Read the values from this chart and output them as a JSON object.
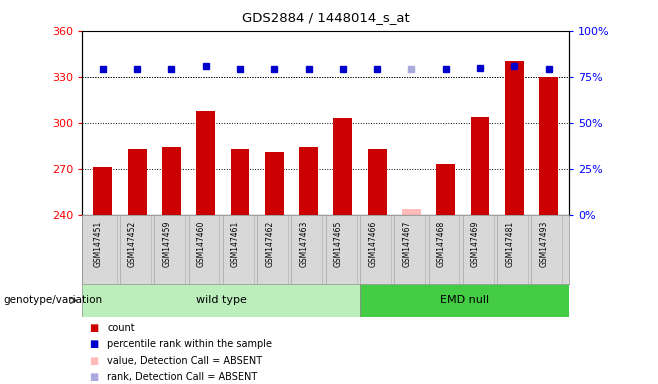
{
  "title": "GDS2884 / 1448014_s_at",
  "samples": [
    "GSM147451",
    "GSM147452",
    "GSM147459",
    "GSM147460",
    "GSM147461",
    "GSM147462",
    "GSM147463",
    "GSM147465",
    "GSM147466",
    "GSM147467",
    "GSM147468",
    "GSM147469",
    "GSM147481",
    "GSM147493"
  ],
  "counts": [
    271,
    283,
    284,
    308,
    283,
    281,
    284,
    303,
    283,
    null,
    273,
    304,
    340,
    330
  ],
  "absent_count": [
    null,
    null,
    null,
    null,
    null,
    null,
    null,
    null,
    null,
    244,
    null,
    null,
    null,
    null
  ],
  "percentile_ranks": [
    79,
    79,
    79,
    81,
    79,
    79,
    79,
    79,
    79,
    null,
    79,
    80,
    81,
    79
  ],
  "absent_rank": [
    null,
    null,
    null,
    null,
    null,
    null,
    null,
    null,
    null,
    79,
    null,
    null,
    null,
    null
  ],
  "groups": [
    "wild type",
    "wild type",
    "wild type",
    "wild type",
    "wild type",
    "wild type",
    "wild type",
    "wild type",
    "EMD null",
    "EMD null",
    "EMD null",
    "EMD null",
    "EMD null",
    "EMD null"
  ],
  "wt_count": 8,
  "emd_count": 6,
  "ylim_left": [
    240,
    360
  ],
  "ylim_right": [
    0,
    100
  ],
  "yticks_left": [
    240,
    270,
    300,
    330,
    360
  ],
  "yticks_right": [
    0,
    25,
    50,
    75,
    100
  ],
  "bar_color": "#cc0000",
  "absent_bar_color": "#ffbbbb",
  "dot_color": "#0000cc",
  "absent_dot_color": "#aaaadd",
  "bg_color": "#d8d8d8",
  "wildtype_color": "#bbeebb",
  "emd_color": "#44cc44",
  "wildtype_label": "wild type",
  "emd_label": "EMD null",
  "group_label": "genotype/variation",
  "legend_items": [
    {
      "label": "count",
      "color": "#cc0000"
    },
    {
      "label": "percentile rank within the sample",
      "color": "#0000cc"
    },
    {
      "label": "value, Detection Call = ABSENT",
      "color": "#ffbbbb"
    },
    {
      "label": "rank, Detection Call = ABSENT",
      "color": "#aaaadd"
    }
  ]
}
